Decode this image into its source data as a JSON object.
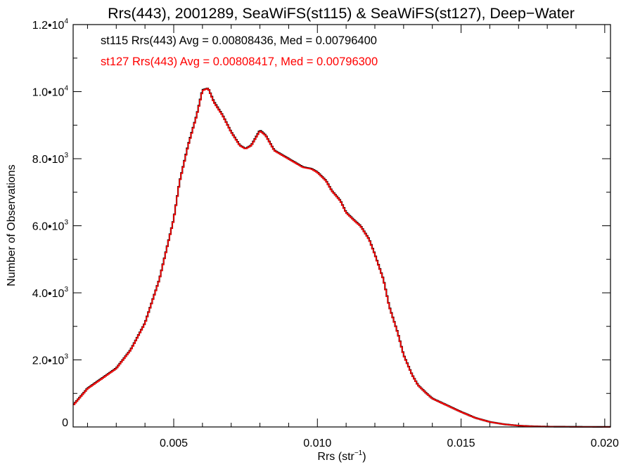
{
  "chart_data": {
    "type": "line",
    "title": "Rrs(443), 2001289, SeaWiFS(st115) & SeaWiFS(st127), Deep−Water",
    "xlabel_main": "Rrs (str",
    "xlabel_sup": "−1",
    "xlabel_end": ")",
    "ylabel": "Number of Observations",
    "xlim": [
      0.0015,
      0.0202
    ],
    "ylim": [
      0,
      12000
    ],
    "x_ticks": [
      {
        "value": 0.005,
        "label": "0.005"
      },
      {
        "value": 0.01,
        "label": "0.010"
      },
      {
        "value": 0.015,
        "label": "0.015"
      },
      {
        "value": 0.02,
        "label": "0.020"
      }
    ],
    "y_ticks": [
      {
        "value": 0,
        "mant": "0",
        "exp": ""
      },
      {
        "value": 2000,
        "mant": "2.0•10",
        "exp": "3"
      },
      {
        "value": 4000,
        "mant": "4.0•10",
        "exp": "3"
      },
      {
        "value": 6000,
        "mant": "6.0•10",
        "exp": "3"
      },
      {
        "value": 8000,
        "mant": "8.0•10",
        "exp": "3"
      },
      {
        "value": 10000,
        "mant": "1.0•10",
        "exp": "4"
      },
      {
        "value": 12000,
        "mant": "1.2•10",
        "exp": "4"
      }
    ],
    "legend": [
      {
        "text": "st115 Rrs(443) Avg = 0.00808436, Med = 0.00796400",
        "color": "#000000"
      },
      {
        "text": "st127 Rrs(443) Avg = 0.00808417, Med = 0.00796300",
        "color": "#ff0000"
      }
    ],
    "series": [
      {
        "color": "#000000",
        "x": [
          0.0015,
          0.002,
          0.0025,
          0.003,
          0.0035,
          0.004,
          0.0045,
          0.005,
          0.0052,
          0.0055,
          0.0058,
          0.006,
          0.0062,
          0.0064,
          0.0067,
          0.007,
          0.0073,
          0.0075,
          0.0077,
          0.008,
          0.0082,
          0.0085,
          0.0088,
          0.009,
          0.0093,
          0.0095,
          0.0098,
          0.01,
          0.0103,
          0.0105,
          0.0108,
          0.011,
          0.0113,
          0.0115,
          0.0118,
          0.012,
          0.0123,
          0.0125,
          0.0128,
          0.013,
          0.0133,
          0.0135,
          0.0138,
          0.014,
          0.0145,
          0.015,
          0.0155,
          0.016,
          0.0165,
          0.017,
          0.0175,
          0.018,
          0.019,
          0.0202
        ],
        "y": [
          650,
          1150,
          1450,
          1750,
          2300,
          3100,
          4400,
          6200,
          7300,
          8400,
          9300,
          10050,
          10100,
          9700,
          9300,
          8800,
          8400,
          8300,
          8400,
          8850,
          8700,
          8250,
          8100,
          8000,
          7850,
          7750,
          7700,
          7600,
          7350,
          7050,
          6750,
          6400,
          6150,
          6000,
          5600,
          5150,
          4400,
          3600,
          2800,
          2150,
          1550,
          1250,
          1000,
          850,
          650,
          450,
          270,
          150,
          80,
          40,
          20,
          10,
          5,
          2
        ]
      },
      {
        "color": "#ff0000",
        "x": [
          0.0015,
          0.002,
          0.0025,
          0.003,
          0.0035,
          0.004,
          0.0045,
          0.005,
          0.0052,
          0.0055,
          0.0058,
          0.006,
          0.0062,
          0.0064,
          0.0067,
          0.007,
          0.0073,
          0.0075,
          0.0077,
          0.008,
          0.0082,
          0.0085,
          0.0088,
          0.009,
          0.0093,
          0.0095,
          0.0098,
          0.01,
          0.0103,
          0.0105,
          0.0108,
          0.011,
          0.0113,
          0.0115,
          0.0118,
          0.012,
          0.0123,
          0.0125,
          0.0128,
          0.013,
          0.0133,
          0.0135,
          0.0138,
          0.014,
          0.0145,
          0.015,
          0.0155,
          0.016,
          0.0165,
          0.017,
          0.0175,
          0.018,
          0.019,
          0.0202
        ],
        "y": [
          640,
          1140,
          1440,
          1740,
          2290,
          3090,
          4390,
          6190,
          7290,
          8380,
          9290,
          10030,
          10100,
          9680,
          9290,
          8790,
          8390,
          8290,
          8390,
          8830,
          8690,
          8240,
          8090,
          7990,
          7840,
          7740,
          7690,
          7590,
          7340,
          7040,
          6740,
          6390,
          6140,
          5990,
          5590,
          5140,
          4390,
          3590,
          2790,
          2140,
          1545,
          1245,
          995,
          845,
          645,
          445,
          268,
          148,
          79,
          39,
          19,
          9,
          4,
          2
        ]
      }
    ]
  }
}
